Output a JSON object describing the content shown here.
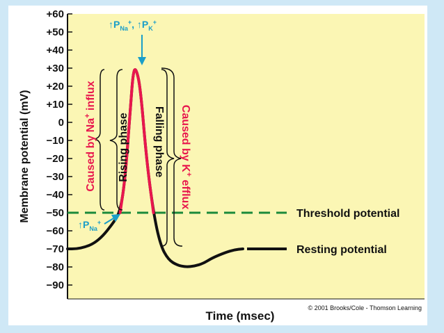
{
  "chart_data": {
    "type": "line",
    "ylabel": "Membrane potential (mV)",
    "xlabel": "Time (msec)",
    "ylim": [
      -90,
      60
    ],
    "y_ticks": [
      60,
      50,
      40,
      30,
      20,
      10,
      0,
      -10,
      -20,
      -30,
      -40,
      -50,
      -60,
      -70,
      -80,
      -90
    ],
    "y_tick_labels": [
      "+60",
      "+50",
      "+40",
      "+30",
      "+20",
      "+10",
      "0",
      "−10",
      "−20",
      "−30",
      "−40",
      "−50",
      "−60",
      "−70",
      "−80",
      "−90"
    ],
    "x_ticks_shown": false,
    "grid": false,
    "threshold": {
      "value": -50,
      "label": "Threshold potential",
      "color": "#1a8a3a"
    },
    "resting": {
      "value": -70,
      "label": "Resting potential"
    },
    "series": [
      {
        "x": [
          0,
          1,
          2,
          3,
          4,
          5,
          6,
          6.6,
          7.2,
          7.5,
          7.8,
          8.3,
          9,
          9.8,
          10.6,
          11.5,
          12.5,
          13.5,
          14.5,
          15.5,
          16.5,
          18,
          19,
          20,
          22,
          25
        ],
        "y": [
          -70,
          -70,
          -69,
          -67,
          -63,
          -57,
          -50,
          -30,
          10,
          28,
          30,
          20,
          -20,
          -50,
          -68,
          -76,
          -79,
          -80,
          -79.5,
          -78,
          -75,
          -72,
          -70.5,
          -70,
          -70,
          -70
        ]
      }
    ],
    "segments": [
      {
        "phase": "Rising phase",
        "color": "#e8174d"
      },
      {
        "phase": "Falling phase",
        "color": "#e8174d"
      }
    ],
    "annotations": {
      "peak_perm": {
        "a": "P",
        "a_sub": "Na",
        "a_sup": "+",
        "b": "P",
        "b_sub": "K",
        "b_sup": "+",
        "color": "#1a9ec9"
      },
      "threshold_perm": {
        "a": "P",
        "a_sub": "Na",
        "a_sup": "+",
        "color": "#1a9ec9"
      },
      "rising_phase": "Rising phase",
      "falling_phase": "Falling phase",
      "na_influx": {
        "pre": "Caused by Na",
        "sup": "+",
        "post": " influx",
        "color": "#e8174d"
      },
      "k_efflux": {
        "pre": "Caused by K",
        "sup": "+",
        "post": " efflux",
        "color": "#e8174d"
      }
    },
    "copyright": "© 2001 Brooks/Cole - Thomson Learning",
    "colors": {
      "plot_bg": "#fbf6b4",
      "trace": "#111111",
      "accent": "#e8174d",
      "arrow": "#1a9ec9"
    }
  }
}
